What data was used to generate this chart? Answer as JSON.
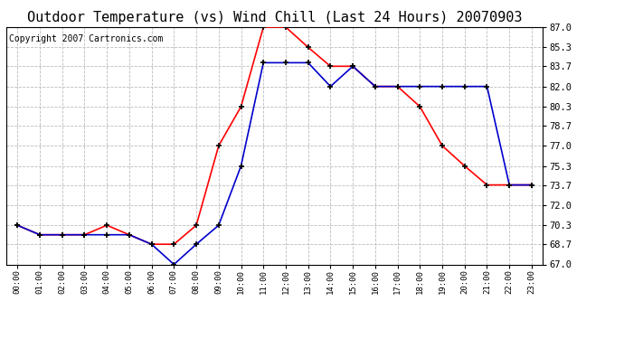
{
  "title": "Outdoor Temperature (vs) Wind Chill (Last 24 Hours) 20070903",
  "copyright": "Copyright 2007 Cartronics.com",
  "hours": [
    "00:00",
    "01:00",
    "02:00",
    "03:00",
    "04:00",
    "05:00",
    "06:00",
    "07:00",
    "08:00",
    "09:00",
    "10:00",
    "11:00",
    "12:00",
    "13:00",
    "14:00",
    "15:00",
    "16:00",
    "17:00",
    "18:00",
    "19:00",
    "20:00",
    "21:00",
    "22:00",
    "23:00"
  ],
  "temp": [
    70.3,
    69.5,
    69.5,
    69.5,
    70.3,
    69.5,
    68.7,
    68.7,
    70.3,
    77.0,
    80.3,
    87.0,
    87.0,
    85.3,
    83.7,
    83.7,
    82.0,
    82.0,
    80.3,
    77.0,
    75.3,
    73.7,
    73.7,
    73.7
  ],
  "windchill": [
    70.3,
    69.5,
    69.5,
    69.5,
    69.5,
    69.5,
    68.7,
    67.0,
    68.7,
    70.3,
    75.3,
    84.0,
    84.0,
    84.0,
    82.0,
    83.7,
    82.0,
    82.0,
    82.0,
    82.0,
    82.0,
    82.0,
    73.7,
    73.7
  ],
  "temp_color": "#ff0000",
  "windchill_color": "#0000cc",
  "bg_color": "#ffffff",
  "grid_color": "#bbbbbb",
  "ylim": [
    67.0,
    87.0
  ],
  "yticks": [
    67.0,
    68.7,
    70.3,
    72.0,
    73.7,
    75.3,
    77.0,
    78.7,
    80.3,
    82.0,
    83.7,
    85.3,
    87.0
  ],
  "title_fontsize": 11,
  "copyright_fontsize": 7
}
